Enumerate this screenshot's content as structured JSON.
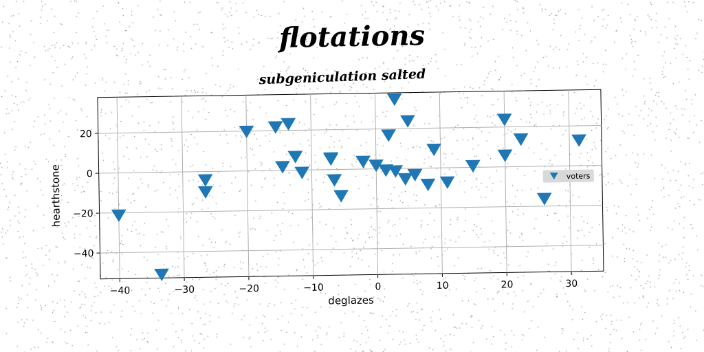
{
  "title": "flotations",
  "subtitle": "subgeniculation salted",
  "colors": {
    "marker": "#1f77b4",
    "grid": "#b0b0b0",
    "legend_bg": "#d9d9d9"
  },
  "chart_data": {
    "type": "scatter",
    "title": "subgeniculation salted",
    "xlabel": "deglazes",
    "ylabel": "hearthstone",
    "xlim": [
      -43,
      35
    ],
    "ylim": [
      -53,
      38
    ],
    "x_ticks": [
      -40,
      -30,
      -20,
      -10,
      0,
      10,
      20,
      30
    ],
    "x_tick_labels": [
      "−40",
      "−30",
      "−20",
      "−10",
      "0",
      "10",
      "20",
      "30"
    ],
    "y_ticks": [
      -40,
      -20,
      0,
      20
    ],
    "y_tick_labels": [
      "−40",
      "−20",
      "0",
      "20"
    ],
    "grid": true,
    "legend_position": "center-right",
    "marker": "triangle-down",
    "series": [
      {
        "name": "voters",
        "points": [
          [
            -40,
            -21
          ],
          [
            -33.5,
            -51
          ],
          [
            -26.5,
            -4
          ],
          [
            -26.5,
            -10
          ],
          [
            -20,
            20
          ],
          [
            -15.5,
            22
          ],
          [
            -13.5,
            23.5
          ],
          [
            -14.5,
            2
          ],
          [
            -12.5,
            7
          ],
          [
            -11.5,
            -1
          ],
          [
            -7,
            6
          ],
          [
            -7,
            5.5
          ],
          [
            -6.5,
            -5
          ],
          [
            -5.5,
            -13
          ],
          [
            -2,
            4
          ],
          [
            0,
            2
          ],
          [
            1.5,
            -0.5
          ],
          [
            3,
            -1
          ],
          [
            4.5,
            -5
          ],
          [
            6,
            -3
          ],
          [
            2,
            17
          ],
          [
            3,
            35
          ],
          [
            5,
            24
          ],
          [
            8,
            -8
          ],
          [
            9,
            9.5
          ],
          [
            11,
            -7
          ],
          [
            15,
            1
          ],
          [
            20,
            24
          ],
          [
            20,
            6
          ],
          [
            22.5,
            14
          ],
          [
            26,
            -16
          ],
          [
            31.5,
            13
          ]
        ]
      }
    ]
  }
}
